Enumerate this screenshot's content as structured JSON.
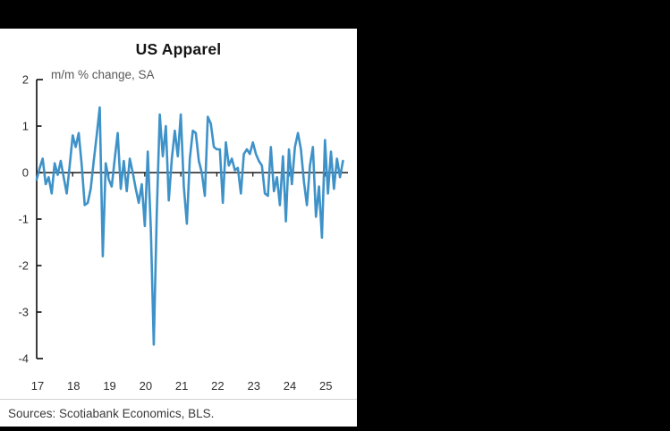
{
  "page": {
    "background": "#000000",
    "panel_background": "#ffffff"
  },
  "chart_data": {
    "type": "line",
    "title": "US Apparel",
    "subtitle": "m/m % change, SA",
    "x_tick_labels": [
      "17",
      "18",
      "19",
      "20",
      "21",
      "22",
      "23",
      "24",
      "25"
    ],
    "y_ticks": [
      2,
      1,
      0,
      -1,
      -2,
      -3,
      -4
    ],
    "ylim": [
      -4,
      2
    ],
    "xlabel": "",
    "ylabel": "",
    "grid": false,
    "legend": "none",
    "zero_line": true,
    "axis_color": "#1a1a1a",
    "tick_label_color": "#2e2e2e",
    "line_color": "#3E92C8",
    "series": [
      {
        "name": "US apparel price index, m/m % change, SA",
        "start": "2017-01",
        "end": "2025-07",
        "frequency": "monthly",
        "values": [
          -0.15,
          0.1,
          0.3,
          -0.25,
          -0.1,
          -0.45,
          0.2,
          -0.05,
          0.25,
          -0.1,
          -0.45,
          0.15,
          0.8,
          0.55,
          0.85,
          0.15,
          -0.7,
          -0.65,
          -0.35,
          0.25,
          0.8,
          1.4,
          -1.8,
          0.2,
          -0.15,
          -0.3,
          0.3,
          0.85,
          -0.35,
          0.25,
          -0.4,
          0.3,
          0.0,
          -0.35,
          -0.65,
          -0.25,
          -1.15,
          0.45,
          -1.2,
          -3.7,
          -0.85,
          1.25,
          0.35,
          1.0,
          -0.6,
          0.3,
          0.9,
          0.35,
          1.25,
          -0.3,
          -1.1,
          0.3,
          0.9,
          0.85,
          0.25,
          0.0,
          -0.5,
          1.2,
          1.05,
          0.55,
          0.5,
          0.5,
          -0.65,
          0.65,
          0.15,
          0.3,
          0.05,
          0.1,
          -0.45,
          0.4,
          0.5,
          0.4,
          0.65,
          0.4,
          0.25,
          0.15,
          -0.45,
          -0.5,
          0.55,
          -0.4,
          -0.1,
          -0.7,
          0.35,
          -1.05,
          0.5,
          -0.25,
          0.55,
          0.85,
          0.5,
          -0.2,
          -0.7,
          0.15,
          0.55,
          -0.95,
          -0.3,
          -1.4,
          0.7,
          -0.45,
          0.45,
          -0.35,
          0.3,
          -0.1,
          0.25
        ]
      }
    ]
  },
  "source_note": "Sources: Scotiabank Economics, BLS."
}
